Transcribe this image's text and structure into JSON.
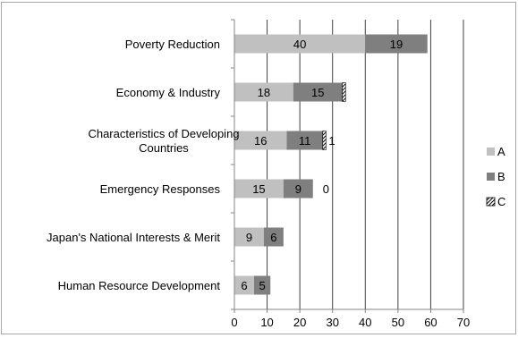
{
  "chart_data": {
    "type": "bar",
    "orientation": "horizontal",
    "stacked": true,
    "categories": [
      "Poverty Reduction",
      "Economy & Industry",
      "Characteristics of Developing Countries",
      "Emergency Responses",
      "Japan's National Interests & Merit",
      "Human Resource Development"
    ],
    "category_lines": [
      [
        "Poverty Reduction"
      ],
      [
        "Economy & Industry"
      ],
      [
        "Characteristics of Developing",
        "Countries"
      ],
      [
        "Emergency Responses"
      ],
      [
        "Japan's National Interests & Merit"
      ],
      [
        "Human Resource Development"
      ]
    ],
    "series": [
      {
        "name": "A",
        "values": [
          40,
          18,
          16,
          15,
          9,
          6
        ],
        "labels": [
          "40",
          "18",
          "16",
          "15",
          "9",
          "6"
        ]
      },
      {
        "name": "B",
        "values": [
          19,
          15,
          11,
          9,
          6,
          5
        ],
        "labels": [
          "19",
          "15",
          "11",
          "9",
          "6",
          "5"
        ]
      },
      {
        "name": "C",
        "values": [
          0,
          1,
          1,
          0,
          0,
          0
        ],
        "labels": [
          "",
          "",
          "1",
          "0",
          "",
          ""
        ]
      }
    ],
    "xticks": [
      "0",
      "10",
      "20",
      "30",
      "40",
      "50",
      "60",
      "70"
    ],
    "xlim": [
      0,
      70
    ],
    "grid": true,
    "legend_position": "right",
    "colors": {
      "A": "#c0c0c0",
      "B": "#7f7f7f",
      "C": "hatched",
      "grid": "#404040",
      "axis": "#868686"
    }
  }
}
